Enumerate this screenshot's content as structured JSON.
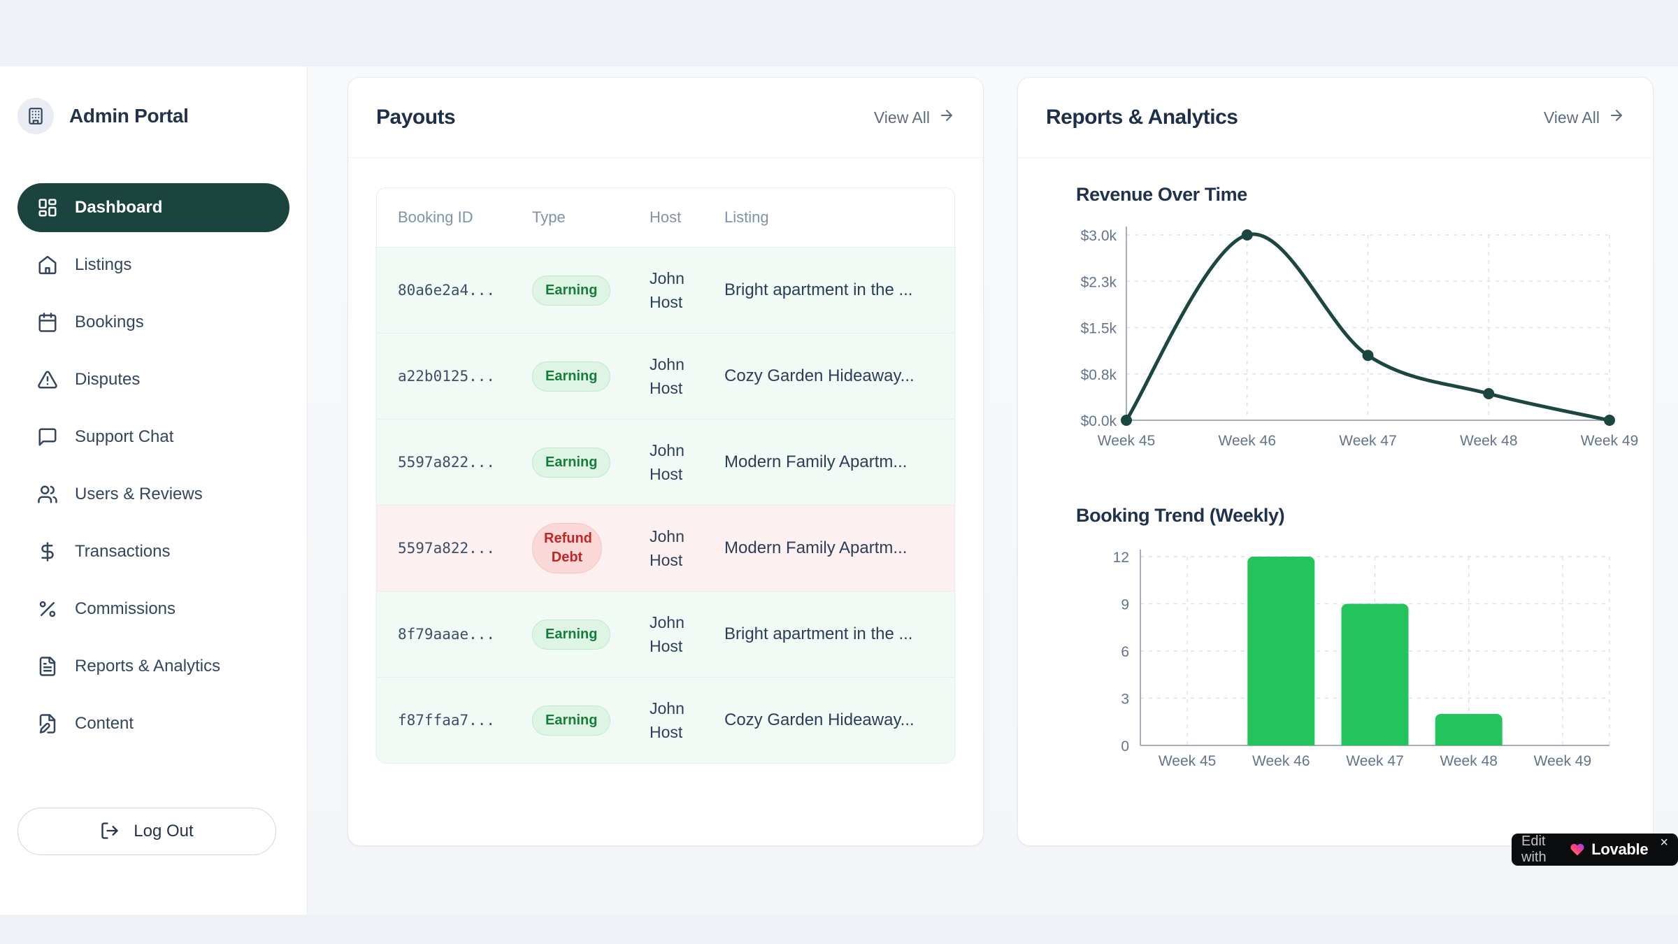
{
  "sidebar": {
    "brand": {
      "title": "Admin Portal",
      "logo_icon": "building-icon"
    },
    "items": [
      {
        "label": "Dashboard",
        "icon": "dashboard-icon",
        "active": true
      },
      {
        "label": "Listings",
        "icon": "home-icon",
        "active": false
      },
      {
        "label": "Bookings",
        "icon": "calendar-icon",
        "active": false
      },
      {
        "label": "Disputes",
        "icon": "alert-triangle-icon",
        "active": false
      },
      {
        "label": "Support Chat",
        "icon": "message-square-icon",
        "active": false
      },
      {
        "label": "Users & Reviews",
        "icon": "users-icon",
        "active": false
      },
      {
        "label": "Transactions",
        "icon": "dollar-sign-icon",
        "active": false
      },
      {
        "label": "Commissions",
        "icon": "percent-icon",
        "active": false
      },
      {
        "label": "Reports & Analytics",
        "icon": "file-text-icon",
        "active": false
      },
      {
        "label": "Content",
        "icon": "file-pen-icon",
        "active": false
      }
    ],
    "logout_label": "Log Out"
  },
  "payouts_card": {
    "title": "Payouts",
    "view_all_label": "View All",
    "table": {
      "columns": [
        "Booking ID",
        "Type",
        "Host",
        "Listing"
      ],
      "rows": [
        {
          "booking_id": "80a6e2a4...",
          "type": "Earning",
          "host": "John Host",
          "listing": "Bright apartment in the ...",
          "tone": "green"
        },
        {
          "booking_id": "a22b0125...",
          "type": "Earning",
          "host": "John Host",
          "listing": "Cozy Garden Hideaway...",
          "tone": "green"
        },
        {
          "booking_id": "5597a822...",
          "type": "Earning",
          "host": "John Host",
          "listing": "Modern Family Apartm...",
          "tone": "green"
        },
        {
          "booking_id": "5597a822...",
          "type": "Refund Debt",
          "host": "John Host",
          "listing": "Modern Family Apartm...",
          "tone": "red"
        },
        {
          "booking_id": "8f79aaae...",
          "type": "Earning",
          "host": "John Host",
          "listing": "Bright apartment in the ...",
          "tone": "green"
        },
        {
          "booking_id": "f87ffaa7...",
          "type": "Earning",
          "host": "John Host",
          "listing": "Cozy Garden Hideaway...",
          "tone": "green"
        }
      ]
    }
  },
  "reports_card": {
    "title": "Reports & Analytics",
    "view_all_label": "View All"
  },
  "chart_data": [
    {
      "type": "line",
      "title": "Revenue Over Time",
      "categories": [
        "Week 45",
        "Week 46",
        "Week 47",
        "Week 48",
        "Week 49"
      ],
      "values": [
        0,
        3000,
        1050,
        430,
        0
      ],
      "y_ticks": [
        0,
        750,
        1500,
        2250,
        3000
      ],
      "y_tick_labels": [
        "$0.0k",
        "$0.8k",
        "$1.5k",
        "$2.3k",
        "$3.0k"
      ],
      "ylim": [
        0,
        3000
      ],
      "xlabel": "",
      "ylabel": "",
      "grid": true,
      "legend": false,
      "line_color": "#1b4740"
    },
    {
      "type": "bar",
      "title": "Booking Trend (Weekly)",
      "categories": [
        "Week 45",
        "Week 46",
        "Week 47",
        "Week 48",
        "Week 49"
      ],
      "values": [
        0,
        12,
        9,
        2,
        0
      ],
      "y_ticks": [
        0,
        3,
        6,
        9,
        12
      ],
      "ylim": [
        0,
        12
      ],
      "xlabel": "",
      "ylabel": "",
      "grid": true,
      "legend": false,
      "bar_color": "#24c45c"
    }
  ],
  "lovable_badge": {
    "prefix": "Edit with",
    "brand": "Lovable",
    "close_label": "×"
  },
  "colors": {
    "accent_teal": "#1b443f",
    "bar_green": "#24c45c",
    "badge_green_text": "#177d3a",
    "badge_green_bg": "#def5e5",
    "badge_red_text": "#c02626",
    "badge_red_bg": "#fbd8d8",
    "row_green_bg": "#f1faf5",
    "row_red_bg": "#fdf0f1"
  }
}
